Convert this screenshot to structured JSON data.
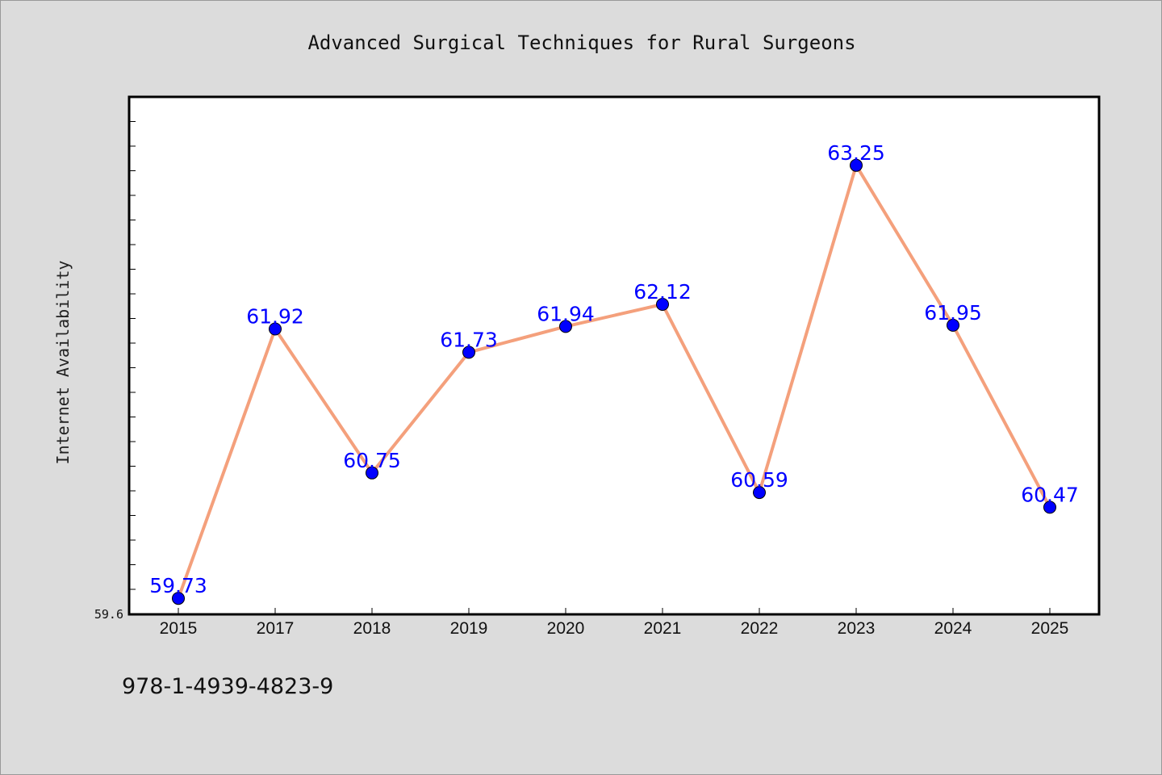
{
  "chart_data": {
    "type": "line",
    "title": "Advanced Surgical Techniques for Rural Surgeons",
    "xlabel": "",
    "ylabel": "Internet Availability",
    "categories": [
      "2015",
      "2017",
      "2018",
      "2019",
      "2020",
      "2021",
      "2022",
      "2023",
      "2024",
      "2025"
    ],
    "series": [
      {
        "values": [
          59.73,
          61.92,
          60.75,
          61.73,
          61.94,
          62.12,
          60.59,
          63.25,
          61.95,
          60.47
        ],
        "labels": [
          "59.73",
          "61.92",
          "60.75",
          "61.73",
          "61.94",
          "62.12",
          "60.59",
          "63.25",
          "61.95",
          "60.47"
        ],
        "line_color": "#f4a07c",
        "marker_color": "#0000ff"
      }
    ],
    "ylim": [
      59.6,
      63.8
    ],
    "ytick_labels": [
      "59.6"
    ],
    "grid": false,
    "legend": "none"
  },
  "footer": {
    "isbn": "978-1-4939-4823-9"
  },
  "colors": {
    "background": "#dcdcdc",
    "plot_background": "#ffffff",
    "line": "#f4a07c",
    "marker": "#0000ff",
    "data_label": "#0000ff"
  }
}
